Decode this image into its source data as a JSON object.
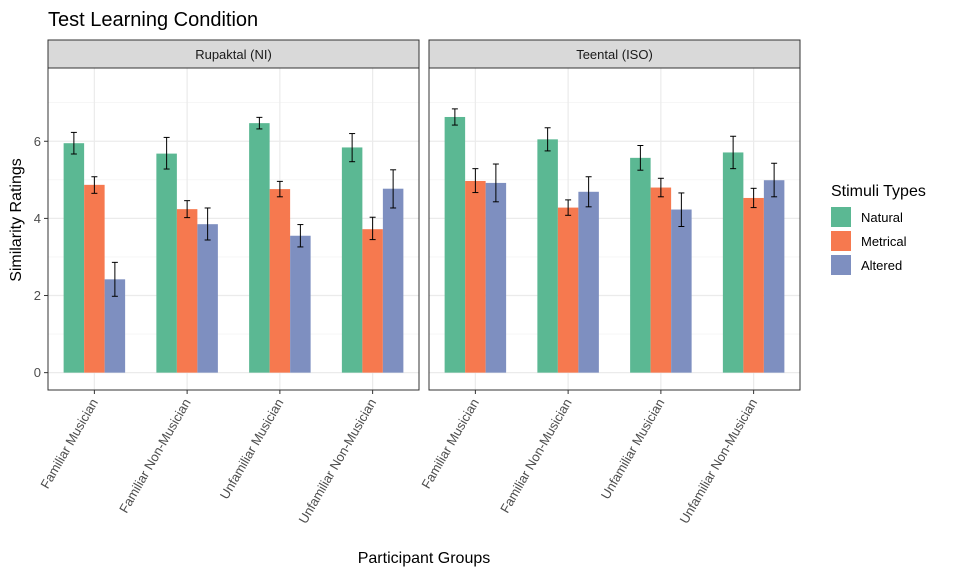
{
  "chart_data": {
    "type": "bar",
    "title": "Test Learning Condition",
    "xlabel": "Participant Groups",
    "ylabel": "Similarity Ratings",
    "ylim": [
      -0.45,
      7.9
    ],
    "yticks": [
      0,
      2,
      4,
      6
    ],
    "grid": true,
    "legend": {
      "title": "Stimuli Types",
      "position": "right",
      "entries": [
        "Natural",
        "Metrical",
        "Altered"
      ]
    },
    "colors": {
      "Natural": "#5bb893",
      "Metrical": "#f6794f",
      "Altered": "#7e8fc0"
    },
    "categories": [
      "Familiar Musician",
      "Familiar Non-Musician",
      "Unfamiliar Musician",
      "Unfamiliar Non-Musician"
    ],
    "panels": [
      {
        "label": "Rupaktal (NI)",
        "series": [
          {
            "name": "Natural",
            "values": [
              5.95,
              5.68,
              6.47,
              5.84
            ],
            "error_low": [
              5.67,
              5.28,
              6.32,
              5.47
            ],
            "error_high": [
              6.23,
              6.1,
              6.62,
              6.2
            ]
          },
          {
            "name": "Metrical",
            "values": [
              4.87,
              4.24,
              4.76,
              3.72
            ],
            "error_low": [
              4.65,
              4.02,
              4.56,
              3.45
            ],
            "error_high": [
              5.08,
              4.46,
              4.96,
              4.03
            ]
          },
          {
            "name": "Altered",
            "values": [
              2.42,
              3.85,
              3.55,
              4.77
            ],
            "error_low": [
              1.98,
              3.44,
              3.26,
              4.27
            ],
            "error_high": [
              2.86,
              4.27,
              3.84,
              5.26
            ]
          }
        ]
      },
      {
        "label": "Teental (ISO)",
        "series": [
          {
            "name": "Natural",
            "values": [
              6.63,
              6.05,
              5.57,
              5.71
            ],
            "error_low": [
              6.42,
              5.75,
              5.25,
              5.29
            ],
            "error_high": [
              6.84,
              6.35,
              5.89,
              6.13
            ]
          },
          {
            "name": "Metrical",
            "values": [
              4.97,
              4.28,
              4.8,
              4.53
            ],
            "error_low": [
              4.67,
              4.08,
              4.56,
              4.28
            ],
            "error_high": [
              5.29,
              4.48,
              5.04,
              4.78
            ]
          },
          {
            "name": "Altered",
            "values": [
              4.92,
              4.69,
              4.23,
              4.99
            ],
            "error_low": [
              4.43,
              4.3,
              3.79,
              4.56
            ],
            "error_high": [
              5.41,
              5.08,
              4.66,
              5.43
            ]
          }
        ]
      }
    ]
  }
}
